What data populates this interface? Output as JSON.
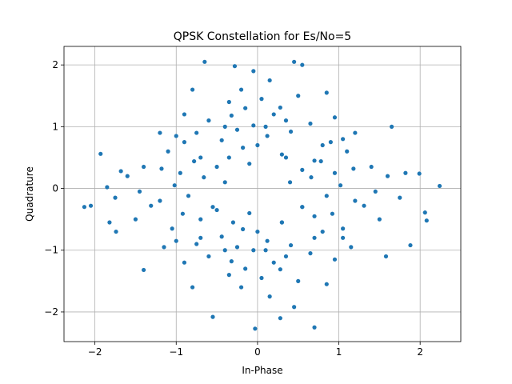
{
  "chart_data": {
    "type": "scatter",
    "title": "QPSK Constellation for Es/No=5",
    "xlabel": "In-Phase",
    "ylabel": "Quadrature",
    "xlim": [
      -2.38,
      2.5
    ],
    "ylim": [
      -2.48,
      2.3
    ],
    "xticks": [
      -2,
      -1,
      0,
      1,
      2
    ],
    "yticks": [
      -2,
      -1,
      0,
      1,
      2
    ],
    "grid": true,
    "marker_color": "#1f77b4",
    "series": [
      {
        "points": [
          [
            -0.05,
            1.02
          ],
          [
            0.12,
            0.85
          ],
          [
            -0.32,
            1.18
          ],
          [
            0.28,
            1.31
          ],
          [
            -0.18,
            0.66
          ],
          [
            0.41,
            0.92
          ],
          [
            -0.44,
            0.78
          ],
          [
            0.05,
            1.45
          ],
          [
            -0.6,
            1.1
          ],
          [
            0.65,
            1.05
          ],
          [
            -0.2,
            1.6
          ],
          [
            0.3,
            0.55
          ],
          [
            -0.75,
            0.9
          ],
          [
            0.8,
            0.7
          ],
          [
            0.15,
            1.75
          ],
          [
            -0.35,
            1.4
          ],
          [
            0.5,
            1.5
          ],
          [
            -0.9,
            1.2
          ],
          [
            0.95,
            1.15
          ],
          [
            -0.1,
            0.4
          ],
          [
            0.2,
            1.2
          ],
          [
            -0.5,
            0.35
          ],
          [
            0.55,
            0.3
          ],
          [
            -0.25,
            0.95
          ],
          [
            0.0,
            0.7
          ],
          [
            -0.05,
            1.9
          ],
          [
            0.45,
            2.05
          ],
          [
            -0.65,
            2.05
          ],
          [
            -0.28,
            1.98
          ],
          [
            0.55,
            2.0
          ],
          [
            -0.8,
            1.6
          ],
          [
            0.85,
            1.55
          ],
          [
            -1.0,
            0.85
          ],
          [
            1.05,
            0.8
          ],
          [
            -0.4,
            1.0
          ],
          [
            0.35,
            1.1
          ],
          [
            -0.15,
            1.3
          ],
          [
            0.1,
            1.0
          ],
          [
            -0.7,
            0.5
          ],
          [
            0.7,
            0.45
          ],
          [
            -0.05,
            -1.0
          ],
          [
            0.12,
            -0.85
          ],
          [
            -0.32,
            -1.18
          ],
          [
            0.28,
            -1.31
          ],
          [
            -0.18,
            -0.66
          ],
          [
            0.41,
            -0.92
          ],
          [
            -0.44,
            -0.78
          ],
          [
            0.05,
            -1.45
          ],
          [
            -0.6,
            -1.1
          ],
          [
            0.65,
            -1.05
          ],
          [
            -0.2,
            -1.6
          ],
          [
            0.3,
            -0.55
          ],
          [
            -0.75,
            -0.9
          ],
          [
            0.8,
            -0.7
          ],
          [
            0.15,
            -1.75
          ],
          [
            -0.35,
            -1.4
          ],
          [
            0.5,
            -1.5
          ],
          [
            -0.9,
            -1.2
          ],
          [
            0.95,
            -1.15
          ],
          [
            -0.1,
            -0.4
          ],
          [
            0.2,
            -1.2
          ],
          [
            -0.5,
            -0.35
          ],
          [
            0.55,
            -0.3
          ],
          [
            -0.25,
            -0.95
          ],
          [
            0.0,
            -0.7
          ],
          [
            -0.03,
            -2.27
          ],
          [
            0.28,
            -2.1
          ],
          [
            0.7,
            -2.25
          ],
          [
            -0.55,
            -2.08
          ],
          [
            0.45,
            -1.92
          ],
          [
            -0.8,
            -1.6
          ],
          [
            0.85,
            -1.55
          ],
          [
            -1.0,
            -0.85
          ],
          [
            1.05,
            -0.8
          ],
          [
            -0.4,
            -1.0
          ],
          [
            0.35,
            -1.1
          ],
          [
            -0.15,
            -1.3
          ],
          [
            0.1,
            -1.0
          ],
          [
            -0.7,
            -0.5
          ],
          [
            0.7,
            -0.45
          ],
          [
            -1.02,
            0.05
          ],
          [
            -0.85,
            -0.12
          ],
          [
            -1.18,
            0.32
          ],
          [
            -1.31,
            -0.28
          ],
          [
            -0.66,
            0.18
          ],
          [
            -0.92,
            -0.41
          ],
          [
            -0.78,
            0.44
          ],
          [
            -1.45,
            -0.05
          ],
          [
            -1.1,
            0.6
          ],
          [
            -1.05,
            -0.65
          ],
          [
            -1.6,
            0.2
          ],
          [
            -0.55,
            -0.3
          ],
          [
            -0.9,
            0.75
          ],
          [
            -0.7,
            -0.8
          ],
          [
            -1.75,
            -0.15
          ],
          [
            -1.4,
            0.35
          ],
          [
            -1.5,
            -0.5
          ],
          [
            -1.2,
            0.9
          ],
          [
            -1.15,
            -0.95
          ],
          [
            -0.4,
            0.1
          ],
          [
            -1.2,
            -0.2
          ],
          [
            -0.35,
            0.5
          ],
          [
            -0.3,
            -0.55
          ],
          [
            -0.95,
            0.25
          ],
          [
            -2.13,
            -0.3
          ],
          [
            -2.05,
            -0.28
          ],
          [
            -1.93,
            0.56
          ],
          [
            -1.82,
            -0.55
          ],
          [
            -1.85,
            0.02
          ],
          [
            -1.4,
            -1.32
          ],
          [
            -1.68,
            0.28
          ],
          [
            -1.74,
            -0.7
          ],
          [
            1.02,
            0.05
          ],
          [
            0.85,
            -0.12
          ],
          [
            1.18,
            0.32
          ],
          [
            1.31,
            -0.28
          ],
          [
            0.66,
            0.18
          ],
          [
            0.92,
            -0.41
          ],
          [
            0.78,
            0.44
          ],
          [
            1.45,
            -0.05
          ],
          [
            1.1,
            0.6
          ],
          [
            1.05,
            -0.65
          ],
          [
            1.6,
            0.2
          ],
          [
            0.55,
            -0.3
          ],
          [
            0.9,
            0.75
          ],
          [
            0.7,
            -0.8
          ],
          [
            1.75,
            -0.15
          ],
          [
            1.4,
            0.35
          ],
          [
            1.5,
            -0.5
          ],
          [
            1.2,
            0.9
          ],
          [
            1.15,
            -0.95
          ],
          [
            0.4,
            0.1
          ],
          [
            1.2,
            -0.2
          ],
          [
            0.35,
            0.5
          ],
          [
            0.3,
            -0.55
          ],
          [
            0.95,
            0.25
          ],
          [
            2.24,
            0.04
          ],
          [
            2.08,
            -0.52
          ],
          [
            2.06,
            -0.39
          ],
          [
            1.99,
            0.24
          ],
          [
            1.88,
            -0.92
          ],
          [
            1.65,
            1.0
          ],
          [
            1.58,
            -1.1
          ],
          [
            1.82,
            0.25
          ]
        ]
      }
    ]
  }
}
